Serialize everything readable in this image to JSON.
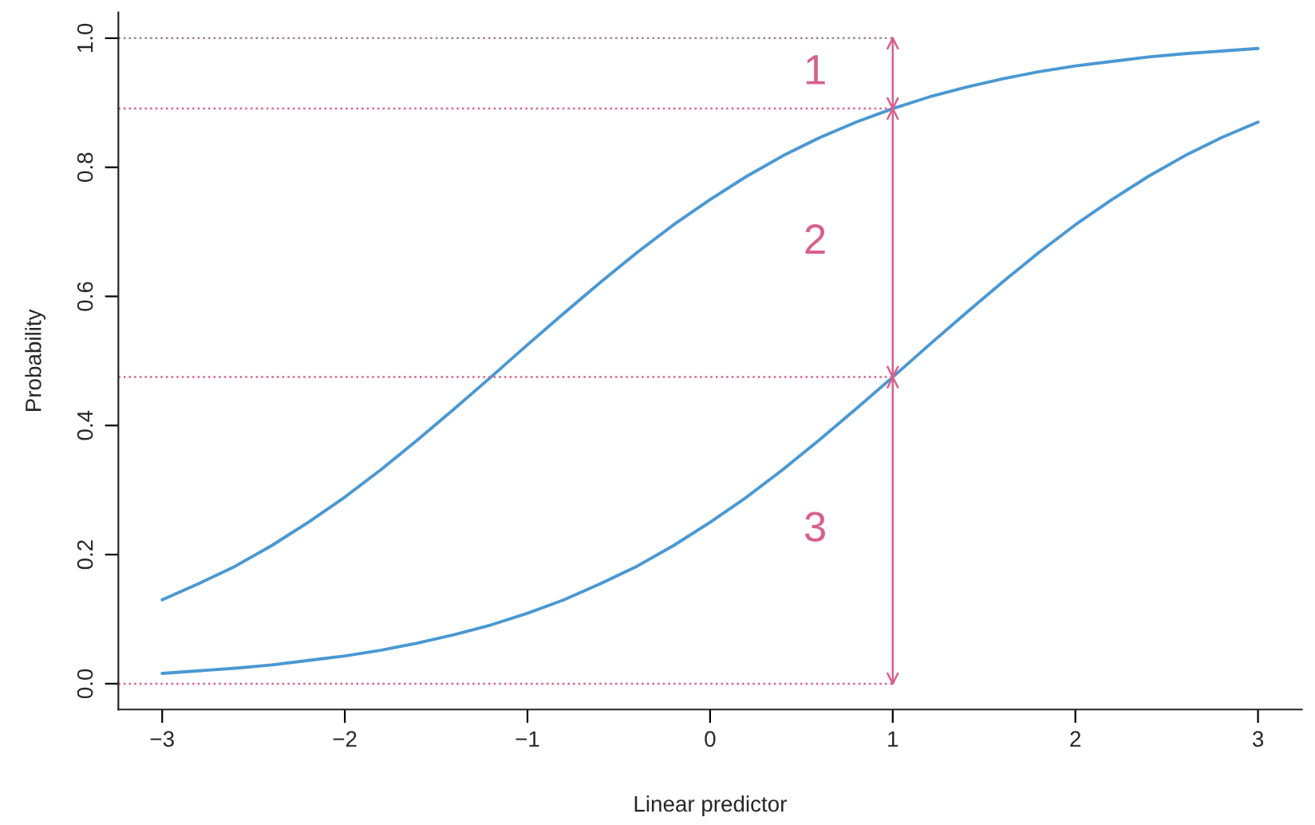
{
  "chart_data": {
    "type": "line",
    "xlabel": "Linear predictor",
    "ylabel": "Probability",
    "x": [
      -3,
      -2.8,
      -2.6,
      -2.4,
      -2.2,
      -2,
      -1.8,
      -1.6,
      -1.4,
      -1.2,
      -1,
      -0.8,
      -0.6,
      -0.4,
      -0.2,
      0,
      0.2,
      0.4,
      0.6,
      0.8,
      1,
      1.2,
      1.4,
      1.6,
      1.8,
      2,
      2.2,
      2.4,
      2.6,
      2.8,
      3
    ],
    "series": [
      {
        "color": "#4a98d3",
        "values": [
          0.13,
          0.155,
          0.182,
          0.214,
          0.25,
          0.289,
          0.332,
          0.378,
          0.426,
          0.475,
          0.525,
          0.574,
          0.622,
          0.668,
          0.711,
          0.75,
          0.786,
          0.818,
          0.846,
          0.87,
          0.891,
          0.909,
          0.924,
          0.937,
          0.948,
          0.957,
          0.964,
          0.971,
          0.976,
          0.98,
          0.984
        ]
      },
      {
        "color": "#4a98d3",
        "values": [
          0.016,
          0.02,
          0.024,
          0.029,
          0.036,
          0.043,
          0.052,
          0.063,
          0.076,
          0.091,
          0.109,
          0.13,
          0.155,
          0.182,
          0.214,
          0.25,
          0.289,
          0.332,
          0.378,
          0.426,
          0.475,
          0.525,
          0.574,
          0.622,
          0.668,
          0.711,
          0.75,
          0.786,
          0.818,
          0.846,
          0.87
        ]
      }
    ],
    "xlim": [
      -3.24,
      3.24
    ],
    "ylim": [
      -0.04,
      1.04
    ],
    "xticks": [
      {
        "value": -3,
        "label": "−3"
      },
      {
        "value": -2,
        "label": "−2"
      },
      {
        "value": -1,
        "label": "−1"
      },
      0,
      1,
      2,
      3
    ],
    "yticks": [
      {
        "value": 0,
        "label": "0.0"
      },
      0.2,
      0.4,
      0.6,
      0.8,
      {
        "value": 1,
        "label": "1.0"
      }
    ],
    "ref_lines": [
      {
        "axis": "y",
        "value": 1,
        "color": "#a08090",
        "line_style": "dotted"
      },
      {
        "axis": "y",
        "value": 0.891,
        "color": "#d8608c",
        "line_style": "dotted"
      },
      {
        "axis": "y",
        "value": 0.475,
        "color": "#d8608c",
        "line_style": "dotted"
      },
      {
        "axis": "y",
        "value": 0,
        "color": "#d8608c",
        "line_style": "dotted"
      },
      {
        "axis": "x",
        "value": 1,
        "color": "#d8608c",
        "line_style": "solid"
      }
    ],
    "annotations": [
      "1",
      "2",
      "3"
    ],
    "grid": false,
    "legend": false,
    "marker": "none",
    "line_style": "solid"
  }
}
